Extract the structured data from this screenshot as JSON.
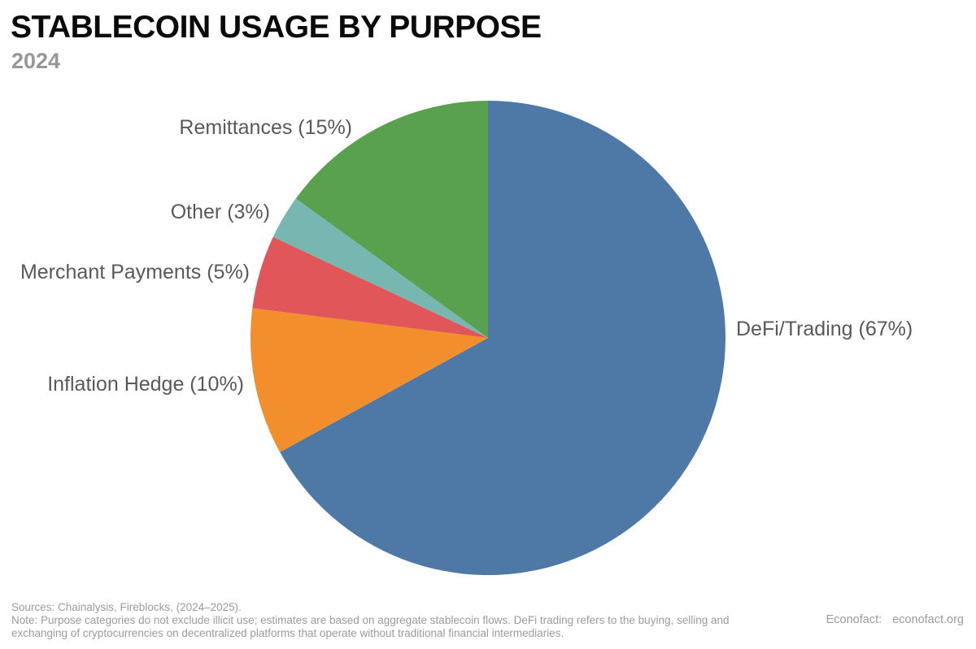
{
  "header": {
    "title": "STABLECOIN USAGE BY PURPOSE",
    "subtitle": "2024"
  },
  "chart_data": {
    "type": "pie",
    "title": "STABLECOIN USAGE BY PURPOSE",
    "subtitle": "2024",
    "units": "percent",
    "start_angle": "12 o'clock",
    "direction": "clockwise",
    "legend_position": "labels outside slices",
    "slices": [
      {
        "name": "DeFi/Trading",
        "value": 67,
        "label": "DeFi/Trading (67%)",
        "color": "#4e79a7"
      },
      {
        "name": "Inflation Hedge",
        "value": 10,
        "label": "Inflation Hedge (10%)",
        "color": "#f28e2b"
      },
      {
        "name": "Merchant Payments",
        "value": 5,
        "label": "Merchant Payments (5%)",
        "color": "#e15759"
      },
      {
        "name": "Other",
        "value": 3,
        "label": "Other (3%)",
        "color": "#76b7b2"
      },
      {
        "name": "Remittances",
        "value": 15,
        "label": "Remittances (15%)",
        "color": "#59a14f"
      }
    ]
  },
  "footer": {
    "sources_line": "Sources: Chainalysis, Fireblocks, (2024–2025).",
    "note_lines": [
      "Note: Purpose categories do not exclude illicit use; estimates are based on aggregate stablecoin flows. DeFi trading refers to the buying, selling and",
      "exchanging of cryptocurrencies on decentralized platforms that operate without traditional financial intermediaries."
    ],
    "brand_label": "Econofact:",
    "brand_url": "econofact.org"
  }
}
